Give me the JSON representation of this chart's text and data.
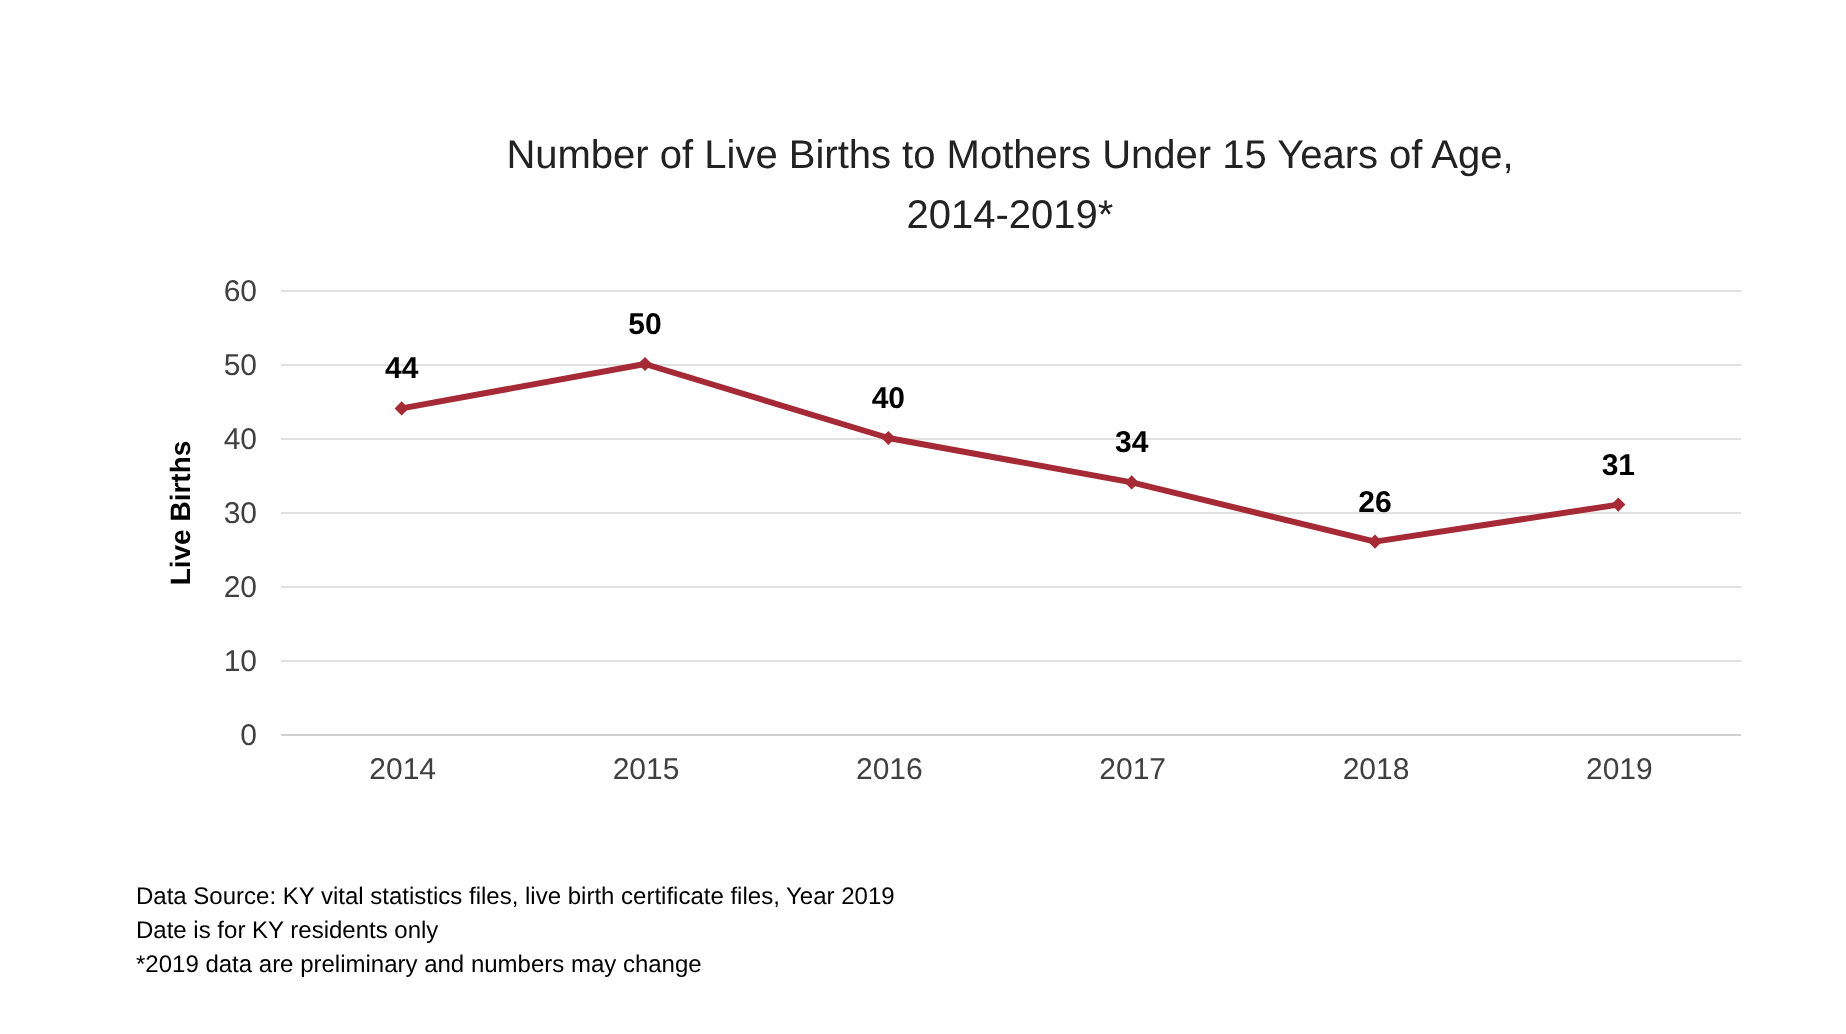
{
  "chart_data": {
    "type": "line",
    "title": "Number of Live Births to Mothers Under 15 Years of Age, 2014-2019*",
    "ylabel": "Live Births",
    "categories": [
      "2014",
      "2015",
      "2016",
      "2017",
      "2018",
      "2019"
    ],
    "series": [
      {
        "color": "#a52a35",
        "values": [
          44,
          50,
          40,
          34,
          26,
          31
        ]
      }
    ],
    "ylim": [
      0,
      60
    ],
    "yticks": [
      0,
      10,
      20,
      30,
      40,
      50,
      60
    ],
    "grid": "y",
    "marker": "diamond",
    "line_style": "solid",
    "data_labels": true,
    "legend": false,
    "annotations": [
      "Data Source: KY vital statistics files, live birth certificate files, Year 2019",
      "Date is for KY residents only",
      "*2019 data are preliminary and numbers may change"
    ]
  }
}
